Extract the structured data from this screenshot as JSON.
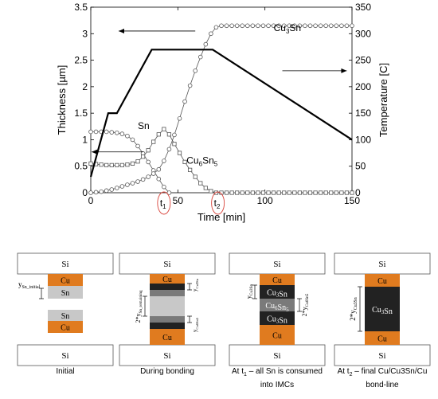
{
  "chart_data": {
    "type": "line",
    "xlabel": "Time [min]",
    "ylabel": "Thickness [µm]",
    "ylabel_right": "Temperature [C]",
    "xlim": [
      0,
      150
    ],
    "ylim": [
      0,
      3.5
    ],
    "ylim_right": [
      0,
      350
    ],
    "x_ticks": [
      "0",
      "50",
      "100",
      "150"
    ],
    "y_ticks": [
      "0",
      "0.5",
      "1",
      "1.5",
      "2",
      "2.5",
      "3",
      "3.5"
    ],
    "y_right_ticks": [
      "0",
      "50",
      "100",
      "150",
      "200",
      "250",
      "300",
      "350"
    ],
    "grid": false,
    "series": [
      {
        "name": "Sn",
        "axis": "left",
        "marker": "circle",
        "x": [
          0,
          3,
          6,
          9,
          12,
          15,
          18,
          21,
          24,
          27,
          30,
          33,
          36,
          39,
          42,
          45
        ],
        "y": [
          1.15,
          1.15,
          1.15,
          1.15,
          1.14,
          1.13,
          1.11,
          1.07,
          1.0,
          0.88,
          0.74,
          0.58,
          0.42,
          0.26,
          0.11,
          0.0
        ]
      },
      {
        "name": "Cu6Sn5",
        "axis": "left",
        "marker": "square",
        "x": [
          0,
          3,
          6,
          9,
          12,
          15,
          18,
          21,
          24,
          27,
          30,
          33,
          36,
          39,
          42,
          45,
          48,
          51,
          54,
          57,
          60,
          63,
          66,
          69,
          72,
          75,
          78,
          81,
          84,
          87,
          90,
          93,
          96,
          99,
          102,
          105,
          108,
          111,
          114,
          117,
          120,
          123,
          126,
          129,
          132,
          135,
          138,
          141,
          144,
          147,
          150
        ],
        "y": [
          0.55,
          0.54,
          0.53,
          0.52,
          0.52,
          0.52,
          0.52,
          0.53,
          0.55,
          0.59,
          0.68,
          0.8,
          0.96,
          1.1,
          1.2,
          1.1,
          0.92,
          0.75,
          0.58,
          0.43,
          0.3,
          0.18,
          0.09,
          0.03,
          0.0,
          0.0,
          0.0,
          0.0,
          0.0,
          0.0,
          0.0,
          0.0,
          0.0,
          0.0,
          0.0,
          0.0,
          0.0,
          0.0,
          0.0,
          0.0,
          0.0,
          0.0,
          0.0,
          0.0,
          0.0,
          0.0,
          0.0,
          0.0,
          0.0,
          0.0,
          0.0
        ]
      },
      {
        "name": "Cu3Sn",
        "axis": "left",
        "marker": "circle",
        "x": [
          0,
          3,
          6,
          9,
          12,
          15,
          18,
          21,
          24,
          27,
          30,
          33,
          36,
          39,
          42,
          45,
          48,
          51,
          54,
          57,
          60,
          63,
          66,
          69,
          72,
          75,
          78,
          81,
          84,
          87,
          90,
          93,
          96,
          99,
          102,
          105,
          108,
          111,
          114,
          117,
          120,
          123,
          126,
          129,
          132,
          135,
          138,
          141,
          144,
          147,
          150
        ],
        "y": [
          0.0,
          0.01,
          0.02,
          0.04,
          0.06,
          0.09,
          0.12,
          0.15,
          0.18,
          0.21,
          0.25,
          0.3,
          0.36,
          0.44,
          0.6,
          0.82,
          1.09,
          1.4,
          1.72,
          2.02,
          2.3,
          2.56,
          2.8,
          3.0,
          3.12,
          3.15,
          3.15,
          3.15,
          3.15,
          3.15,
          3.15,
          3.15,
          3.15,
          3.15,
          3.15,
          3.15,
          3.15,
          3.15,
          3.15,
          3.15,
          3.15,
          3.15,
          3.15,
          3.15,
          3.15,
          3.15,
          3.15,
          3.15,
          3.15,
          3.15,
          3.15
        ]
      },
      {
        "name": "Temperature",
        "axis": "right",
        "marker": "none",
        "x": [
          0,
          10,
          15,
          35,
          70,
          150
        ],
        "y": [
          30,
          150,
          150,
          270,
          270,
          100
        ]
      }
    ],
    "annotations": [
      {
        "text_main": "Cu",
        "text_sub": "3",
        "text_tail": "Sn",
        "x": 105,
        "y": 3.05
      },
      {
        "text_main": "Sn",
        "text_sub": "",
        "text_tail": "",
        "x": 27,
        "y": 1.2
      },
      {
        "text_main": "Cu",
        "text_sub": "6",
        "text_tail": "Sn",
        "text_sub2": "5",
        "x": 55,
        "y": 0.55
      },
      {
        "text_main": "t",
        "text_sub": "1",
        "x": 42,
        "label": "t1"
      },
      {
        "text_main": "t",
        "text_sub": "2",
        "x": 73,
        "label": "t2"
      }
    ]
  },
  "panels": [
    {
      "id": "initial",
      "caption": [
        "Initial"
      ],
      "top_label": "Si",
      "bottom_label": "Si",
      "layers": [
        {
          "label": "Cu",
          "fill": "#e07b1f",
          "text_color": "#000000"
        },
        {
          "label": "Sn",
          "fill": "#c8c8c8",
          "text_color": "#000000"
        },
        {
          "label": "Sn",
          "fill": "#c8c8c8",
          "text_color": "#000000"
        },
        {
          "label": "Cu",
          "fill": "#e07b1f",
          "text_color": "#000000"
        }
      ],
      "dimension_label": "y",
      "dimension_sub": "Sn_initial"
    },
    {
      "id": "during-bonding",
      "caption": [
        "During bonding"
      ],
      "top_label": "Si",
      "bottom_label": "Si",
      "layers": [
        {
          "label": "Cu",
          "fill": "#e07b1f",
          "text_color": "#000000"
        },
        {
          "label": "",
          "fill": "#222222"
        },
        {
          "label": "",
          "fill": "#7a7a7a"
        },
        {
          "label": "",
          "fill": "#c8c8c8"
        },
        {
          "label": "",
          "fill": "#7a7a7a"
        },
        {
          "label": "",
          "fill": "#222222"
        },
        {
          "label": "Cu",
          "fill": "#e07b1f",
          "text_color": "#000000"
        }
      ],
      "dimension_left": "2*y",
      "dimension_left_sub": "Sn_remaining",
      "dimension_right_top": "y",
      "dimension_right_top_sub": "Cu3Sn",
      "dimension_right_bottom": "y",
      "dimension_right_bottom_sub": "Cu6Sn5"
    },
    {
      "id": "t1",
      "caption": [
        "At t",
        "1",
        " – all Sn is consumed",
        "into IMCs"
      ],
      "top_label": "Si",
      "bottom_label": "Si",
      "layers": [
        {
          "label": "Cu",
          "fill": "#e07b1f",
          "text_color": "#000000"
        },
        {
          "label": "Cu3Sn",
          "fill": "#222222",
          "text_color": "#ffffff"
        },
        {
          "label": "Cu6Sn5",
          "fill": "#7a7a7a",
          "text_color": "#ffffff"
        },
        {
          "label": "Cu3Sn",
          "fill": "#222222",
          "text_color": "#ffffff"
        },
        {
          "label": "Cu",
          "fill": "#e07b1f",
          "text_color": "#000000"
        }
      ],
      "dimension_left": "y",
      "dimension_left_sub": "Cu3Sn",
      "dimension_right": "2*y",
      "dimension_right_sub": "Cu6Sn5"
    },
    {
      "id": "t2",
      "caption": [
        "At t",
        "2",
        " – final Cu/Cu3Sn/Cu",
        "bond-line"
      ],
      "top_label": "Si",
      "bottom_label": "Si",
      "layers": [
        {
          "label": "Cu",
          "fill": "#e07b1f",
          "text_color": "#000000"
        },
        {
          "label": "Cu3Sn",
          "fill": "#222222",
          "text_color": "#ffffff"
        },
        {
          "label": "Cu",
          "fill": "#e07b1f",
          "text_color": "#000000"
        }
      ],
      "dimension_left": "2*y",
      "dimension_left_sub": "Cu3Sn"
    }
  ],
  "colors": {
    "copper": "#e07b1f",
    "tin": "#c8c8c8",
    "cu6sn5": "#7a7a7a",
    "cu3sn": "#222222",
    "highlight_circle": "#d9443b",
    "series_line": "#555555"
  }
}
